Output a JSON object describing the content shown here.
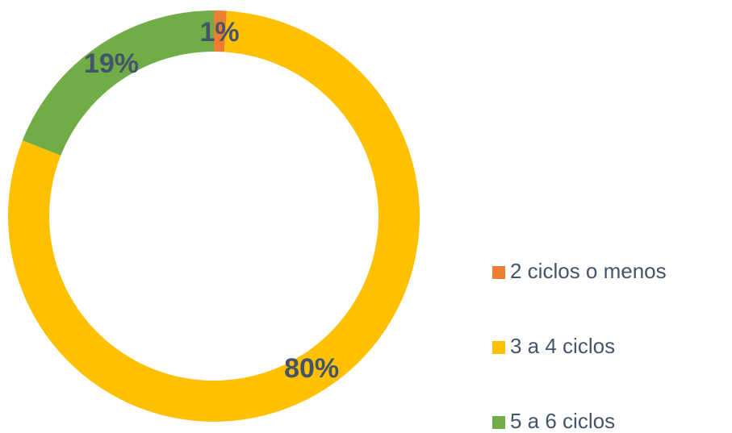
{
  "chart_data": {
    "type": "donut",
    "categories": [
      "2 ciclos o menos",
      "3 a 4 ciclos",
      "5 a 6 ciclos"
    ],
    "values": [
      1,
      80,
      19
    ],
    "value_labels": [
      "1%",
      "80%",
      "19%"
    ],
    "colors": [
      "#ed7d31",
      "#ffc000",
      "#70ad47"
    ],
    "legend": "right"
  }
}
